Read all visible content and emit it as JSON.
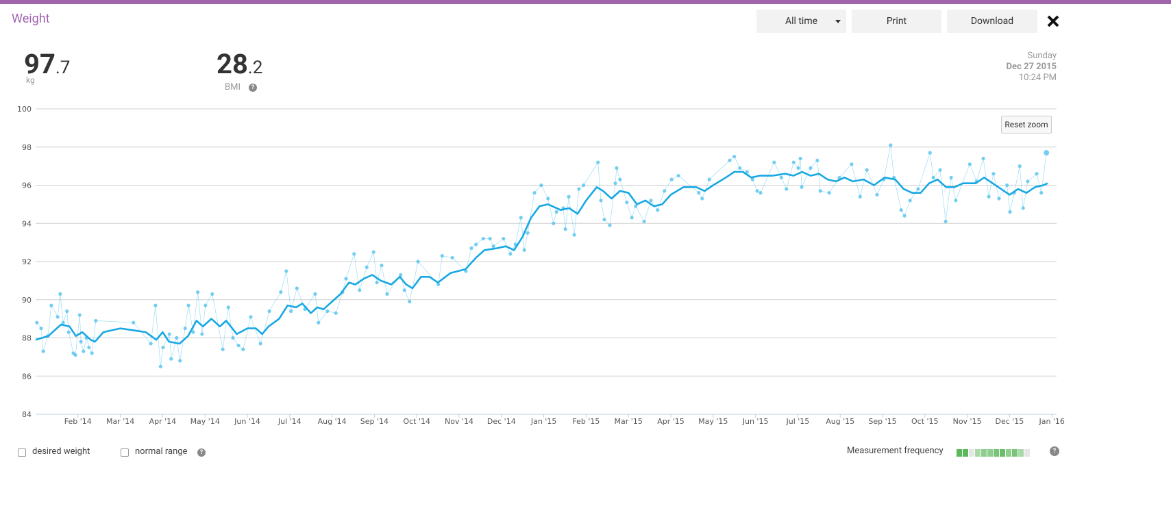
{
  "header": {
    "title": "Weight",
    "range_select": "All time",
    "print": "Print",
    "download": "Download"
  },
  "stats": {
    "weight_whole": "97",
    "weight_decimal": ".7",
    "weight_unit": "kg",
    "bmi_whole": "28",
    "bmi_decimal": ".2",
    "bmi_label": "BMI"
  },
  "date": {
    "day": "Sunday",
    "date": "Dec 27 2015",
    "time": "10:24 PM"
  },
  "reset_zoom": "Reset zoom",
  "footer": {
    "desired_weight": "desired weight",
    "normal_range": "normal range",
    "measurement_frequency": "Measurement frequency"
  },
  "chart_data": {
    "type": "line",
    "grid": true,
    "xlim": [
      0,
      24.11
    ],
    "xticks": [
      {
        "value": 1,
        "label": "Feb '14"
      },
      {
        "value": 2,
        "label": "Mar '14"
      },
      {
        "value": 3,
        "label": "Apr '14"
      },
      {
        "value": 4,
        "label": "May '14"
      },
      {
        "value": 5,
        "label": "Jun '14"
      },
      {
        "value": 6,
        "label": "Jul '14"
      },
      {
        "value": 7,
        "label": "Aug '14"
      },
      {
        "value": 8,
        "label": "Sep '14"
      },
      {
        "value": 9,
        "label": "Oct '14"
      },
      {
        "value": 10,
        "label": "Nov '14"
      },
      {
        "value": 11,
        "label": "Dec '14"
      },
      {
        "value": 12,
        "label": "Jan '15"
      },
      {
        "value": 13,
        "label": "Feb '15"
      },
      {
        "value": 14,
        "label": "Mar '15"
      },
      {
        "value": 15,
        "label": "Apr '15"
      },
      {
        "value": 16,
        "label": "May '15"
      },
      {
        "value": 17,
        "label": "Jun '15"
      },
      {
        "value": 18,
        "label": "Jul '15"
      },
      {
        "value": 19,
        "label": "Aug '15"
      },
      {
        "value": 20,
        "label": "Sep '15"
      },
      {
        "value": 21,
        "label": "Oct '15"
      },
      {
        "value": 22,
        "label": "Nov '15"
      },
      {
        "value": 23,
        "label": "Dec '15"
      },
      {
        "value": 24,
        "label": "Jan '16"
      }
    ],
    "ylim": [
      84,
      100
    ],
    "yticks": [
      84,
      86,
      88,
      90,
      92,
      94,
      96,
      98,
      100
    ],
    "series": [
      {
        "color": "#5cc6ee",
        "style": "points",
        "x": [
          0.03,
          0.13,
          0.18,
          0.29,
          0.37,
          0.52,
          0.58,
          0.65,
          0.74,
          0.78,
          0.89,
          0.94,
          1.04,
          1.07,
          1.13,
          1.2,
          1.26,
          1.33,
          1.42,
          2.31,
          2.72,
          2.83,
          2.95,
          3.01,
          3.16,
          3.2,
          3.33,
          3.41,
          3.53,
          3.61,
          3.72,
          3.83,
          3.93,
          4.01,
          4.17,
          4.42,
          4.55,
          4.66,
          4.79,
          4.9,
          5.08,
          5.31,
          5.52,
          5.79,
          5.92,
          6.03,
          6.17,
          6.36,
          6.6,
          6.68,
          6.89,
          7.09,
          7.25,
          7.33,
          7.52,
          7.65,
          7.82,
          7.98,
          8.06,
          8.17,
          8.3,
          8.62,
          8.71,
          8.83,
          9.03,
          9.51,
          9.6,
          9.84,
          10.16,
          10.29,
          10.4,
          10.57,
          10.73,
          10.81,
          11.05,
          11.21,
          11.33,
          11.46,
          11.54,
          11.62,
          11.78,
          11.94,
          12.1,
          12.23,
          12.3,
          12.46,
          12.51,
          12.59,
          12.72,
          12.83,
          12.94,
          13.28,
          13.35,
          13.43,
          13.56,
          13.69,
          13.72,
          13.8,
          13.96,
          14.08,
          14.17,
          14.37,
          14.53,
          14.69,
          14.85,
          15.02,
          15.18,
          15.66,
          15.74,
          15.91,
          16.39,
          16.5,
          16.63,
          16.8,
          16.93,
          17.04,
          17.12,
          17.44,
          17.61,
          17.73,
          17.9,
          18.01,
          18.06,
          18.09,
          18.3,
          18.46,
          18.53,
          18.74,
          18.98,
          19.27,
          19.47,
          19.63,
          19.87,
          20.03,
          20.19,
          20.27,
          20.44,
          20.52,
          20.65,
          20.84,
          21.12,
          21.2,
          21.36,
          21.49,
          21.62,
          21.73,
          22.06,
          22.22,
          22.38,
          22.51,
          22.62,
          22.75,
          22.94,
          23.01,
          23.11,
          23.24,
          23.32,
          23.43,
          23.64,
          23.75,
          23.87
        ],
        "values": [
          88.8,
          88.5,
          87.3,
          88.1,
          89.7,
          89.1,
          90.3,
          88.8,
          89.4,
          88.3,
          87.2,
          87.1,
          89.2,
          87.8,
          87.3,
          88.0,
          87.5,
          87.2,
          88.9,
          88.8,
          87.7,
          89.7,
          86.5,
          87.5,
          88.2,
          86.9,
          88.0,
          86.8,
          88.5,
          89.7,
          88.3,
          90.4,
          88.2,
          89.7,
          90.3,
          87.4,
          89.6,
          88.0,
          87.6,
          87.4,
          89.1,
          87.7,
          89.4,
          90.4,
          91.5,
          89.4,
          90.6,
          89.5,
          90.3,
          88.8,
          89.4,
          89.3,
          90.4,
          91.1,
          92.4,
          90.5,
          91.7,
          92.5,
          90.9,
          91.8,
          90.3,
          91.3,
          90.5,
          89.9,
          92.0,
          90.8,
          92.3,
          92.2,
          91.5,
          92.7,
          92.9,
          93.2,
          93.2,
          92.8,
          93.2,
          92.4,
          92.9,
          94.3,
          92.6,
          93.5,
          95.6,
          96.0,
          95.3,
          94.0,
          94.6,
          94.8,
          93.7,
          95.4,
          93.4,
          95.8,
          96.0,
          97.2,
          95.2,
          94.2,
          93.9,
          96.1,
          96.9,
          96.3,
          95.1,
          94.3,
          94.9,
          94.1,
          95.2,
          94.7,
          95.7,
          96.3,
          96.5,
          95.6,
          95.3,
          96.3,
          97.3,
          97.5,
          96.9,
          96.7,
          96.3,
          95.7,
          95.6,
          97.2,
          96.4,
          95.8,
          97.2,
          96.9,
          97.4,
          95.9,
          96.9,
          97.3,
          95.7,
          95.6,
          96.4,
          97.1,
          95.4,
          96.8,
          95.5,
          96.3,
          98.1,
          96.4,
          94.7,
          94.4,
          95.2,
          95.8,
          97.7,
          96.4,
          96.8,
          94.1,
          96.4,
          95.2,
          97.1,
          96.2,
          97.4,
          95.4,
          96.6,
          95.3,
          96.0,
          94.6,
          95.6,
          97.0,
          94.8,
          96.2,
          96.6,
          95.6,
          97.7
        ]
      },
      {
        "color": "#17a8e3",
        "style": "line",
        "x": [
          0,
          0.3,
          0.6,
          0.8,
          0.95,
          1.1,
          1.3,
          1.4,
          1.6,
          2.0,
          2.3,
          2.6,
          2.85,
          3.0,
          3.15,
          3.4,
          3.6,
          3.8,
          3.95,
          4.15,
          4.35,
          4.5,
          4.75,
          5.0,
          5.2,
          5.35,
          5.5,
          5.75,
          5.95,
          6.15,
          6.3,
          6.5,
          6.65,
          6.8,
          7.0,
          7.2,
          7.4,
          7.55,
          7.75,
          7.95,
          8.15,
          8.4,
          8.6,
          8.75,
          8.9,
          9.1,
          9.3,
          9.5,
          9.8,
          10.15,
          10.4,
          10.6,
          10.9,
          11.1,
          11.3,
          11.5,
          11.7,
          11.9,
          12.1,
          12.4,
          12.6,
          12.8,
          13.0,
          13.25,
          13.4,
          13.6,
          13.8,
          14.0,
          14.2,
          14.4,
          14.6,
          14.8,
          15.0,
          15.3,
          15.6,
          15.8,
          16.0,
          16.3,
          16.5,
          16.7,
          16.9,
          17.1,
          17.4,
          17.7,
          17.9,
          18.1,
          18.3,
          18.5,
          18.7,
          18.9,
          19.1,
          19.3,
          19.55,
          19.8,
          20.05,
          20.3,
          20.5,
          20.7,
          20.9,
          21.1,
          21.3,
          21.5,
          21.7,
          21.9,
          22.2,
          22.4,
          22.6,
          22.8,
          23.0,
          23.2,
          23.4,
          23.6,
          23.8,
          23.9
        ],
        "values": [
          87.9,
          88.1,
          88.7,
          88.6,
          88.1,
          88.3,
          87.9,
          87.8,
          88.3,
          88.5,
          88.4,
          88.3,
          87.9,
          88.3,
          87.8,
          87.7,
          88.1,
          88.9,
          88.6,
          89.0,
          88.6,
          88.9,
          88.2,
          88.5,
          88.5,
          88.2,
          88.6,
          89.0,
          89.7,
          89.6,
          89.8,
          89.3,
          89.6,
          89.5,
          89.9,
          90.3,
          90.9,
          90.8,
          91.1,
          91.3,
          91.0,
          90.8,
          91.2,
          90.8,
          90.6,
          91.2,
          91.2,
          90.9,
          91.4,
          91.6,
          92.2,
          92.6,
          92.7,
          92.8,
          92.6,
          93.3,
          94.3,
          94.9,
          95.0,
          94.7,
          94.8,
          94.5,
          95.2,
          95.9,
          95.7,
          95.3,
          95.7,
          95.6,
          95.0,
          95.2,
          94.9,
          95.0,
          95.5,
          95.9,
          95.9,
          95.7,
          96.0,
          96.4,
          96.7,
          96.7,
          96.4,
          96.5,
          96.5,
          96.6,
          96.5,
          96.7,
          96.5,
          96.6,
          96.3,
          96.2,
          96.4,
          96.2,
          96.3,
          96.0,
          96.4,
          96.3,
          95.8,
          95.6,
          95.6,
          96.1,
          96.3,
          95.9,
          95.9,
          96.1,
          96.1,
          96.4,
          96.1,
          95.8,
          95.5,
          95.8,
          95.6,
          95.9,
          96.0,
          96.1
        ]
      }
    ]
  }
}
